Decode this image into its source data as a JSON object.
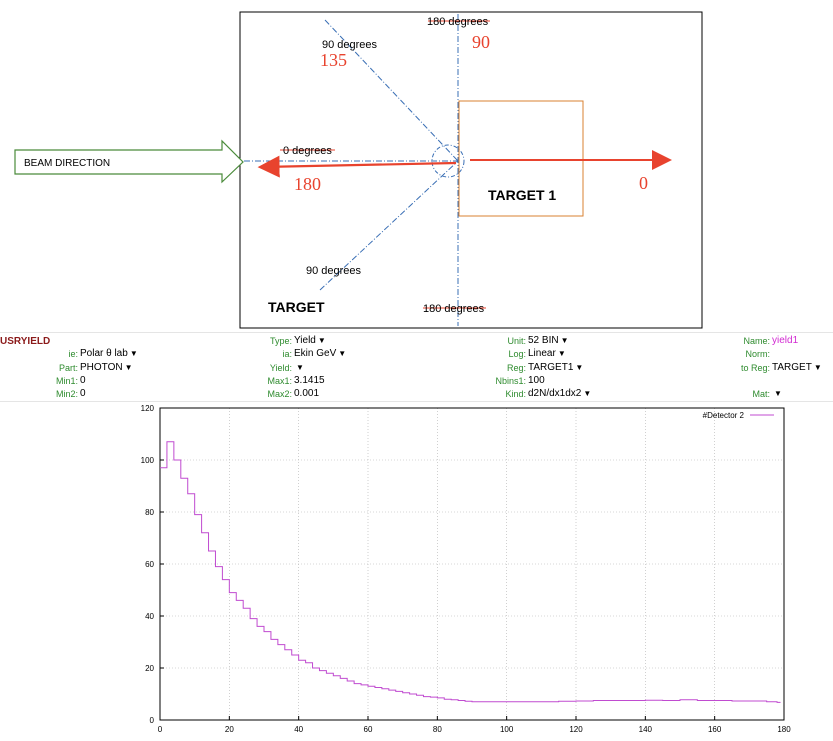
{
  "diagram": {
    "beam_label": "BEAM DIRECTION",
    "target_label": "TARGET",
    "target1_label": "TARGET 1",
    "deg_180_top": "180 degrees",
    "deg_90_top": "90 degrees",
    "deg_0": "0 degrees",
    "deg_90_bottom": "90 degrees",
    "deg_180_bottom": "180 degrees",
    "num_90": "90",
    "num_135": "135",
    "num_180": "180",
    "num_0": "0",
    "colors": {
      "red": "#e8432e",
      "blue": "#3a6fb5",
      "green": "#3a8b3a",
      "orange": "#d98030"
    }
  },
  "usryield": {
    "title": "USRYIELD",
    "col1": [
      {
        "label": "ie:",
        "value": "Polar θ lab",
        "dropdown": true
      },
      {
        "label": "Part:",
        "value": "PHOTON",
        "dropdown": true
      },
      {
        "label": "Min1:",
        "value": "0",
        "dropdown": false
      },
      {
        "label": "Min2:",
        "value": "0",
        "dropdown": false
      }
    ],
    "col2": [
      {
        "label": "Type:",
        "value": "Yield",
        "dropdown": true
      },
      {
        "label": "ia:",
        "value": "Ekin GeV",
        "dropdown": true
      },
      {
        "label": "Yield:",
        "value": "",
        "dropdown": true
      },
      {
        "label": "Max1:",
        "value": "3.1415",
        "dropdown": false
      },
      {
        "label": "Max2:",
        "value": "0.001",
        "dropdown": false
      }
    ],
    "col3": [
      {
        "label": "Unit:",
        "value": "52 BIN",
        "dropdown": true
      },
      {
        "label": "Log:",
        "value": "Linear",
        "dropdown": true
      },
      {
        "label": "Reg:",
        "value": "TARGET1",
        "dropdown": true
      },
      {
        "label": "Nbins1:",
        "value": "100",
        "dropdown": false
      },
      {
        "label": "Kind:",
        "value": "d2N/dx1dx2",
        "dropdown": true
      }
    ],
    "col4": [
      {
        "label": "Name:",
        "value": "yield1",
        "dropdown": false
      },
      {
        "label": "Norm:",
        "value": "",
        "dropdown": false
      },
      {
        "label": "to Reg:",
        "value": "TARGET",
        "dropdown": true
      },
      {
        "label": "Mat:",
        "value": "",
        "dropdown": true
      }
    ]
  },
  "chart_data": {
    "type": "line",
    "title": "",
    "xlabel": "",
    "ylabel": "",
    "xlim": [
      0,
      180
    ],
    "ylim": [
      0,
      120
    ],
    "x_ticks": [
      0,
      20,
      40,
      60,
      80,
      100,
      120,
      140,
      160,
      180
    ],
    "y_ticks": [
      0,
      20,
      40,
      60,
      80,
      100,
      120
    ],
    "grid": true,
    "legend_position": "top-right",
    "series": [
      {
        "name": "#Detector 2",
        "color": "#c04bd0",
        "step": true,
        "x": [
          0,
          2,
          4,
          6,
          8,
          10,
          12,
          14,
          16,
          18,
          20,
          22,
          24,
          26,
          28,
          30,
          32,
          34,
          36,
          38,
          40,
          42,
          44,
          46,
          48,
          50,
          52,
          54,
          56,
          58,
          60,
          62,
          64,
          66,
          68,
          70,
          72,
          74,
          76,
          78,
          80,
          82,
          84,
          86,
          88,
          90,
          95,
          100,
          105,
          110,
          115,
          120,
          125,
          130,
          135,
          140,
          145,
          150,
          155,
          160,
          165,
          170,
          175,
          178
        ],
        "values": [
          97,
          107,
          100,
          93,
          87,
          79,
          72,
          65,
          59,
          54,
          49,
          46,
          43,
          39,
          36,
          34,
          31,
          29,
          27,
          25,
          23,
          22,
          20,
          19,
          18,
          17,
          16,
          15,
          14,
          13.5,
          13,
          12.5,
          12,
          11.5,
          11,
          10.5,
          10,
          9.5,
          9,
          8.8,
          8.5,
          8,
          7.8,
          7.5,
          7.2,
          7,
          7,
          7,
          7,
          7,
          7.2,
          7.3,
          7.5,
          7.5,
          7.5,
          7.6,
          7.5,
          7.8,
          7.5,
          7.5,
          7.3,
          7.3,
          7,
          6.8
        ]
      }
    ]
  }
}
